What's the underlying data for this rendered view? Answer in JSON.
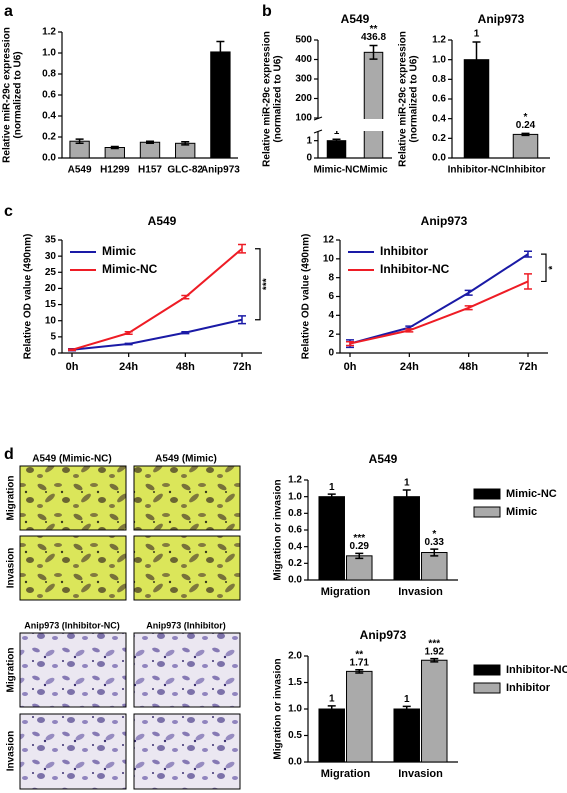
{
  "chart_data": [
    {
      "type": "bar",
      "panel": "a",
      "ylabel": [
        "Relative miR-29c expression",
        "(normalized to U6)"
      ],
      "categories": [
        "A549",
        "H1299",
        "H157",
        "GLC-82",
        "Anip973"
      ],
      "values": [
        0.16,
        0.1,
        0.15,
        0.14,
        1.01
      ],
      "errors": [
        0.02,
        0.01,
        0.01,
        0.015,
        0.1
      ],
      "colors": [
        "#aaaaaa",
        "#aaaaaa",
        "#aaaaaa",
        "#aaaaaa",
        "#000000"
      ],
      "ylim": [
        0,
        1.2
      ],
      "yticks": [
        {
          "value": 0,
          "label": "0.0"
        },
        0.2,
        0.4,
        0.6,
        0.8,
        {
          "value": 1,
          "label": "1.0"
        },
        1.2
      ]
    },
    {
      "type": "bar",
      "panel": "b",
      "title": "A549",
      "ylabel": [
        "Relative miR-29c expression",
        "(normalized to U6)"
      ],
      "categories": [
        "Mimic-NC",
        "Mimic"
      ],
      "values": [
        1,
        436.8
      ],
      "errors": [
        0.08,
        35
      ],
      "colors": [
        "#000000",
        "#aaaaaa"
      ],
      "show_values": true,
      "ylim": [
        0,
        500
      ],
      "ybreak": [
        1.5,
        100
      ],
      "yticks": [
        0,
        1,
        100,
        200,
        300,
        400,
        500
      ],
      "annotations": [
        {
          "category": "Mimic",
          "text": "**"
        }
      ]
    },
    {
      "type": "bar",
      "title": "Anip973",
      "ylabel": [
        "Relative miR-29c expression",
        "(normalized to U6)"
      ],
      "categories": [
        "Inhibitor-NC",
        "Inhibitor"
      ],
      "values": [
        1,
        0.24
      ],
      "errors": [
        0.18,
        0.01
      ],
      "colors": [
        "#000000",
        "#aaaaaa"
      ],
      "show_values": true,
      "ylim": [
        0,
        1.2
      ],
      "yticks": [
        {
          "value": 0,
          "label": "0.0"
        },
        0.2,
        0.4,
        0.6,
        0.8,
        {
          "value": 1,
          "label": "1.0"
        },
        1.2
      ],
      "annotations": [
        {
          "category": "Inhibitor",
          "text": "*"
        }
      ]
    },
    {
      "type": "line",
      "panel": "c",
      "title": "A549",
      "ylabel": [
        "Relative OD value (490nm)"
      ],
      "categories": [
        "0h",
        "24h",
        "48h",
        "72h"
      ],
      "series": [
        {
          "name": "Mimic",
          "color": "#1a1aa6",
          "values": [
            1,
            2.8,
            6.3,
            10.3
          ],
          "errors": [
            0.3,
            0.2,
            0.3,
            1.2
          ]
        },
        {
          "name": "Mimic-NC",
          "color": "#ee1c25",
          "values": [
            1,
            6.2,
            17.3,
            32.3
          ],
          "errors": [
            0.2,
            0.4,
            0.5,
            1.3
          ]
        }
      ],
      "ylim": [
        0,
        35
      ],
      "yticks": [
        0,
        5,
        10,
        15,
        20,
        25,
        30,
        35
      ],
      "annotations": [
        {
          "text": "***"
        }
      ]
    },
    {
      "type": "line",
      "title": "Anip973",
      "ylabel": [
        "Relative OD value (490nm)"
      ],
      "categories": [
        "0h",
        "24h",
        "48h",
        "72h"
      ],
      "series": [
        {
          "name": "Inhibitor",
          "color": "#1a1aa6",
          "values": [
            1,
            2.7,
            6.4,
            10.5
          ],
          "errors": [
            0.4,
            0.15,
            0.25,
            0.3
          ]
        },
        {
          "name": "Inhibitor-NC",
          "color": "#ee1c25",
          "values": [
            1,
            2.4,
            4.8,
            7.6
          ],
          "errors": [
            0.2,
            0.15,
            0.2,
            0.8
          ]
        }
      ],
      "ylim": [
        0,
        12
      ],
      "yticks": [
        0,
        2,
        4,
        6,
        8,
        10,
        12
      ],
      "annotations": [
        {
          "text": "*"
        }
      ]
    },
    {
      "type": "grouped-bar",
      "title": "A549",
      "ylabel": [
        "Migration or invasion"
      ],
      "categories": [
        "Migration",
        "Invasion"
      ],
      "show_values": true,
      "series": [
        {
          "name": "Mimic-NC",
          "color": "#000000",
          "values": [
            1,
            1
          ],
          "errors": [
            0.03,
            0.08
          ]
        },
        {
          "name": "Mimic",
          "color": "#aaaaaa",
          "values": [
            0.29,
            0.33
          ],
          "errors": [
            0.03,
            0.04
          ]
        }
      ],
      "ylim": [
        0,
        1.2
      ],
      "yticks": [
        {
          "value": 0,
          "label": "0.0"
        },
        0.2,
        0.4,
        0.6,
        0.8,
        {
          "value": 1,
          "label": "1.0"
        },
        1.2
      ],
      "annotations": [
        {
          "series": "Mimic",
          "category": "Migration",
          "text": "***"
        },
        {
          "series": "Mimic",
          "category": "Invasion",
          "text": "*"
        }
      ]
    },
    {
      "type": "grouped-bar",
      "title": "Anip973",
      "ylabel": [
        "Migration or invasion"
      ],
      "categories": [
        "Migration",
        "Invasion"
      ],
      "show_values": true,
      "series": [
        {
          "name": "Inhibitor-NC",
          "color": "#000000",
          "values": [
            1,
            1
          ],
          "errors": [
            0.06,
            0.05
          ]
        },
        {
          "name": "Inhibitor",
          "color": "#aaaaaa",
          "values": [
            1.71,
            1.92
          ],
          "errors": [
            0.03,
            0.03
          ]
        }
      ],
      "ylim": [
        0,
        2
      ],
      "yticks": [
        {
          "value": 0,
          "label": "0.0"
        },
        0.5,
        {
          "value": 1,
          "label": "1.0"
        },
        1.5,
        {
          "value": 2,
          "label": "2.0"
        }
      ],
      "annotations": [
        {
          "series": "Inhibitor",
          "category": "Migration",
          "text": "**"
        },
        {
          "series": "Inhibitor",
          "category": "Invasion",
          "text": "***"
        }
      ]
    }
  ],
  "images": {
    "panel": "d",
    "groups": [
      {
        "columns": [
          "A549 (Mimic-NC)",
          "A549 (Mimic)"
        ],
        "rows": [
          "Migration",
          "Invasion"
        ]
      },
      {
        "columns": [
          "Anip973 (Inhibitor-NC)",
          "Anip973 (Inhibitor)"
        ],
        "rows": [
          "Migration",
          "Invasion"
        ]
      }
    ]
  }
}
